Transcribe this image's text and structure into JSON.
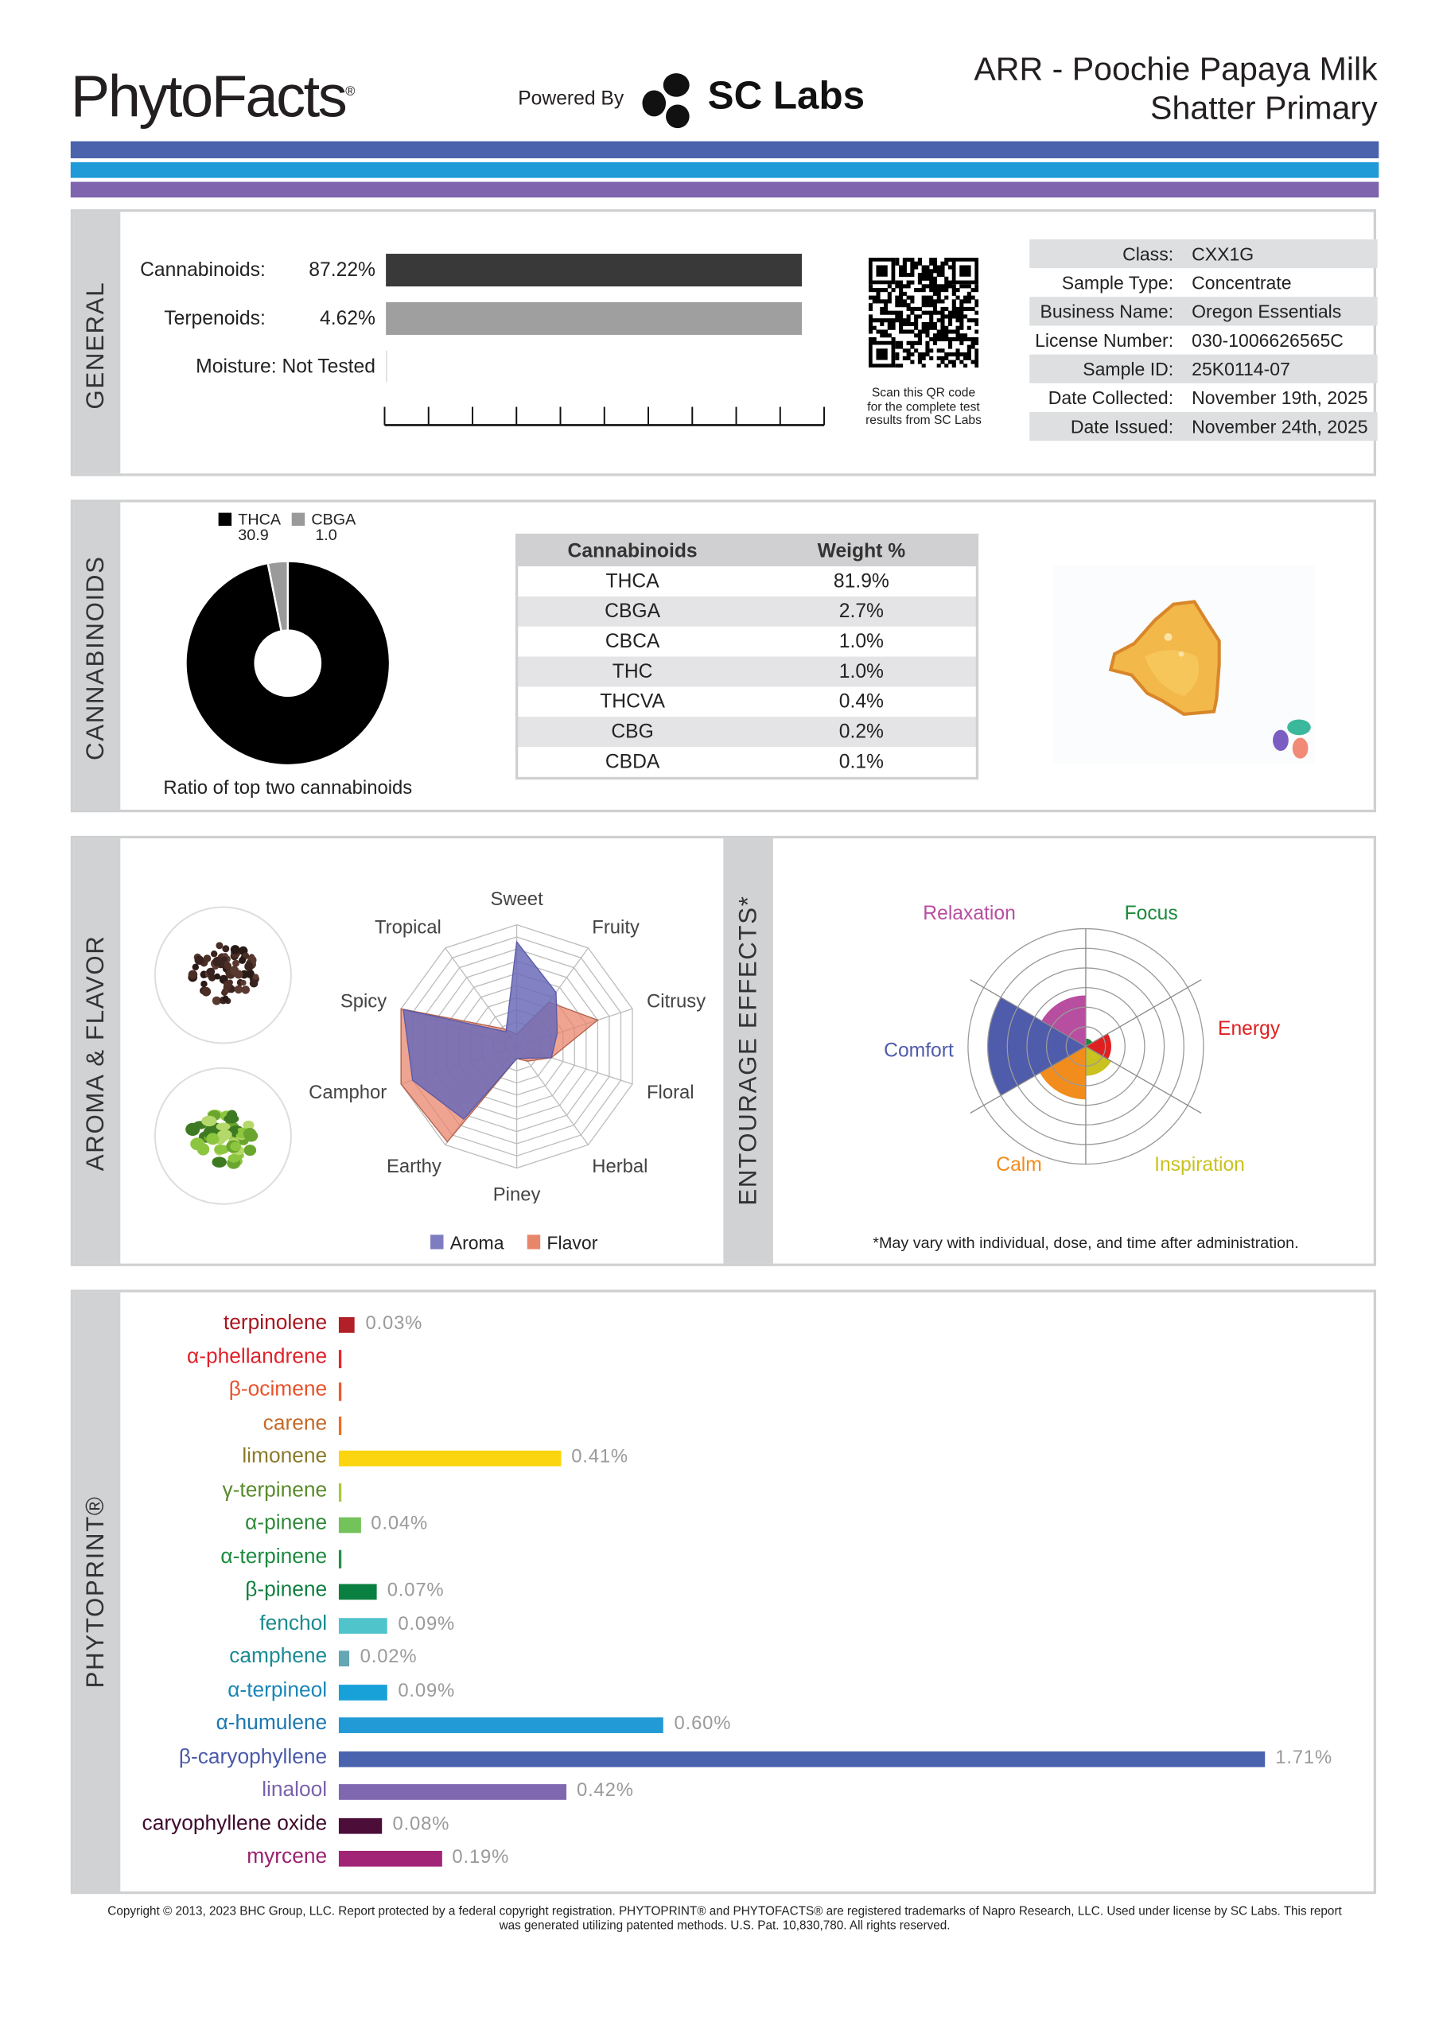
{
  "header": {
    "logo": "PhytoFacts",
    "powered_by": "Powered By",
    "partner_logo": "SC Labs",
    "title_line1": "ARR - Poochie Papaya Milk",
    "title_line2": "Shatter Primary"
  },
  "stripe_colors": [
    "#4b63ad",
    "#209bd7",
    "#7e65ae"
  ],
  "general": {
    "section_label": "GENERAL",
    "cannabinoids_label": "Cannabinoids:",
    "cannabinoids_value": "87.22%",
    "cannabinoids_fraction": 0.8722,
    "terpenoids_label": "Terpenoids:",
    "terpenoids_value": "4.62%",
    "moisture_label": "Moisture:",
    "moisture_value": "Not Tested",
    "qr_caption_1": "Scan this QR code",
    "qr_caption_2": "for the complete test",
    "qr_caption_3": "results from SC Labs",
    "info": [
      {
        "label": "Class:",
        "value": "CXX1G"
      },
      {
        "label": "Sample Type:",
        "value": "Concentrate"
      },
      {
        "label": "Business Name:",
        "value": "Oregon Essentials"
      },
      {
        "label": "License Number:",
        "value": "030-1006626565C"
      },
      {
        "label": "Sample ID:",
        "value": "25K0114-07"
      },
      {
        "label": "Date Collected:",
        "value": "November 19th, 2025"
      },
      {
        "label": "Date Issued:",
        "value": "November 24th, 2025"
      }
    ]
  },
  "cannabinoids": {
    "section_label": "CANNABINOIDS",
    "ratio_caption": "Ratio of top two cannabinoids",
    "donut": [
      {
        "name": "THCA",
        "value": "30.9",
        "color": "#000000"
      },
      {
        "name": "CBGA",
        "value": "1.0",
        "color": "#9a9a9a"
      }
    ],
    "table_headers": [
      "Cannabinoids",
      "Weight %"
    ],
    "table_rows": [
      [
        "THCA",
        "81.9%"
      ],
      [
        "CBGA",
        "2.7%"
      ],
      [
        "CBCA",
        "1.0%"
      ],
      [
        "THC",
        "1.0%"
      ],
      [
        "THCVA",
        "0.4%"
      ],
      [
        "CBG",
        "0.2%"
      ],
      [
        "CBDA",
        "0.1%"
      ]
    ]
  },
  "aroma": {
    "section_label": "AROMA & FLAVOR",
    "axes": [
      "Sweet",
      "Fruity",
      "Citrusy",
      "Floral",
      "Herbal",
      "Piney",
      "Earthy",
      "Camphor",
      "Spicy",
      "Tropical"
    ],
    "series": [
      {
        "name": "Aroma",
        "color": "#6b6bb8",
        "values": [
          0.86,
          0.55,
          0.35,
          0.3,
          0.12,
          0.1,
          0.74,
          0.9,
          0.98,
          0.15
        ]
      },
      {
        "name": "Flavor",
        "color": "#e8866b",
        "values": [
          0.1,
          0.45,
          0.7,
          0.3,
          0.15,
          0.1,
          0.97,
          1.0,
          1.0,
          0.18
        ]
      }
    ]
  },
  "entourage": {
    "section_label": "ENTOURAGE EFFECTS*",
    "footnote": "*May vary with individual, dose, and time after administration.",
    "max": 6,
    "effects": [
      {
        "name": "Focus",
        "value": 0.4,
        "color": "#1a8a3a"
      },
      {
        "name": "Energy",
        "value": 1.3,
        "color": "#e02020"
      },
      {
        "name": "Inspiration",
        "value": 1.5,
        "color": "#c9c21f"
      },
      {
        "name": "Calm",
        "value": 2.7,
        "color": "#f28c1c"
      },
      {
        "name": "Comfort",
        "value": 5.0,
        "color": "#4f5bab"
      },
      {
        "name": "Relaxation",
        "value": 2.6,
        "color": "#b84ea0"
      }
    ]
  },
  "phytoprint": {
    "section_label": "PHYTOPRINT®",
    "terpenes": [
      {
        "name": "terpinolene",
        "value": 0.03,
        "label": "0.03%",
        "color": "#b11f27",
        "text_color": "#a8161f"
      },
      {
        "name": "α-phellandrene",
        "value": 0,
        "label": "",
        "color": "#e5262e",
        "text_color": "#e0222b"
      },
      {
        "name": "β-ocimene",
        "value": 0,
        "label": "",
        "color": "#ec5a2a",
        "text_color": "#e8512a"
      },
      {
        "name": "carene",
        "value": 0,
        "label": "",
        "color": "#ef6c23",
        "text_color": "#c4692a"
      },
      {
        "name": "limonene",
        "value": 0.41,
        "label": "0.41%",
        "color": "#fbd50f",
        "text_color": "#8a7a2a"
      },
      {
        "name": "γ-terpinene",
        "value": 0,
        "label": "",
        "color": "#a8c83a",
        "text_color": "#5a8a2a"
      },
      {
        "name": "α-pinene",
        "value": 0.04,
        "label": "0.04%",
        "color": "#74c25a",
        "text_color": "#2f8a3a"
      },
      {
        "name": "α-terpinene",
        "value": 0,
        "label": "",
        "color": "#22904a",
        "text_color": "#1a8a3e"
      },
      {
        "name": "β-pinene",
        "value": 0.07,
        "label": "0.07%",
        "color": "#0a8040",
        "text_color": "#0e7f3f"
      },
      {
        "name": "fenchol",
        "value": 0.09,
        "label": "0.09%",
        "color": "#50c4cb",
        "text_color": "#1a8a8c"
      },
      {
        "name": "camphene",
        "value": 0.02,
        "label": "0.02%",
        "color": "#64a6b4",
        "text_color": "#1a8a94"
      },
      {
        "name": "α-terpineol",
        "value": 0.09,
        "label": "0.09%",
        "color": "#18a0d8",
        "text_color": "#1a86b8"
      },
      {
        "name": "α-humulene",
        "value": 0.6,
        "label": "0.60%",
        "color": "#229ad5",
        "text_color": "#1a78b0"
      },
      {
        "name": "β-caryophyllene",
        "value": 1.71,
        "label": "1.71%",
        "color": "#4a63ae",
        "text_color": "#4a5aa8"
      },
      {
        "name": "linalool",
        "value": 0.42,
        "label": "0.42%",
        "color": "#8068b0",
        "text_color": "#7a62aa"
      },
      {
        "name": "caryophyllene oxide",
        "value": 0.08,
        "label": "0.08%",
        "color": "#4c0e38",
        "text_color": "#3e0a2e"
      },
      {
        "name": "myrcene",
        "value": 0.19,
        "label": "0.19%",
        "color": "#a22476",
        "text_color": "#9a1f70"
      }
    ]
  },
  "footer": {
    "line1": "Copyright © 2013, 2023 BHC Group, LLC. Report protected by a federal copyright registration. PHYTOPRINT® and PHYTOFACTS® are registered trademarks of Napro Research, LLC. Used under license by SC Labs. This report",
    "line2": "was generated utilizing patented methods. U.S. Pat. 10,830,780. All rights reserved."
  }
}
